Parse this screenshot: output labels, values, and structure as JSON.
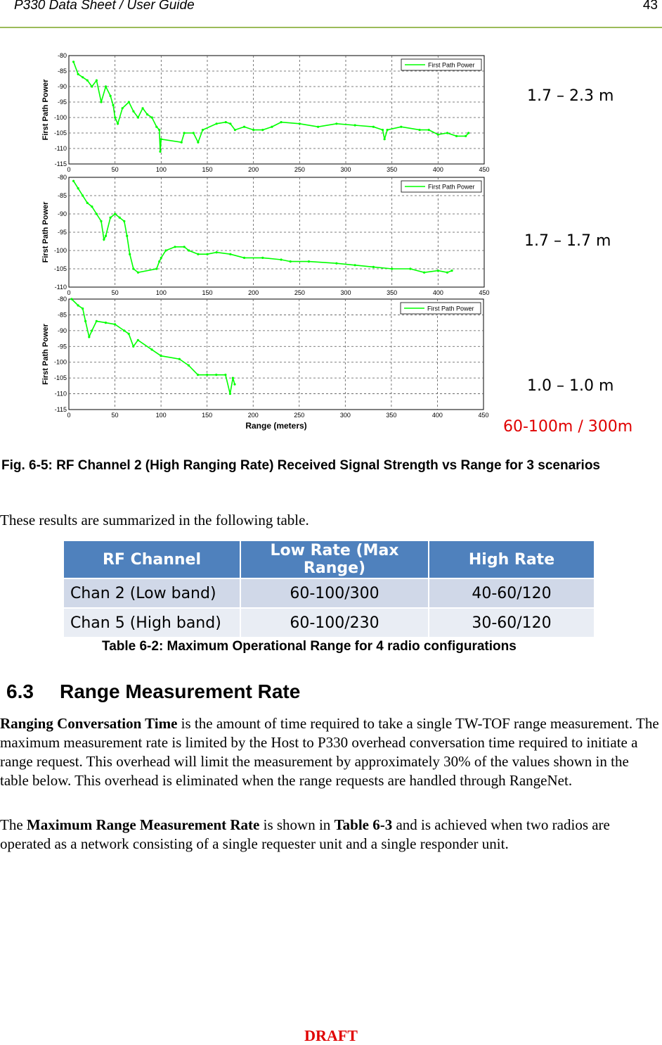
{
  "header": {
    "title": "P330 Data Sheet / User Guide",
    "page_number": "43"
  },
  "figure": {
    "caption": "Fig. 6-5: RF Channel 2 (High Ranging Rate) Received Signal Strength vs Range for 3 scenarios",
    "annotations": [
      "1.7 – 2.3 m",
      "1.7 – 1.7 m",
      "1.0 – 1.0 m"
    ],
    "range_note": "60-100m / 300m",
    "range_note_color": "#e00000",
    "series_color": "#00ff00"
  },
  "chart_data": [
    {
      "type": "line",
      "ylabel": "First Path Power",
      "xlabel": "",
      "xlim": [
        0,
        450
      ],
      "ylim": [
        -115,
        -80
      ],
      "xticks": [
        "0",
        "50",
        "100",
        "150",
        "200",
        "250",
        "300",
        "350",
        "400",
        "450"
      ],
      "yticks": [
        "-80",
        "-85",
        "-90",
        "-95",
        "-100",
        "-105",
        "-110",
        "-115"
      ],
      "grid": true,
      "legend": "top-right",
      "series": [
        {
          "name": "First Path Power",
          "points": [
            [
              5,
              -82
            ],
            [
              10,
              -86
            ],
            [
              15,
              -87
            ],
            [
              20,
              -88
            ],
            [
              25,
              -90
            ],
            [
              30,
              -88
            ],
            [
              35,
              -95
            ],
            [
              40,
              -90
            ],
            [
              45,
              -93
            ],
            [
              48,
              -96
            ],
            [
              50,
              -100
            ],
            [
              53,
              -102
            ],
            [
              58,
              -97
            ],
            [
              65,
              -95
            ],
            [
              70,
              -98
            ],
            [
              75,
              -100
            ],
            [
              80,
              -97
            ],
            [
              85,
              -99
            ],
            [
              90,
              -100
            ],
            [
              95,
              -103
            ],
            [
              98,
              -104
            ],
            [
              99,
              -111
            ],
            [
              100,
              -107
            ],
            [
              122,
              -108
            ],
            [
              125,
              -105
            ],
            [
              135,
              -105
            ],
            [
              140,
              -108
            ],
            [
              145,
              -104
            ],
            [
              160,
              -102
            ],
            [
              170,
              -101.5
            ],
            [
              175,
              -102
            ],
            [
              180,
              -104
            ],
            [
              190,
              -103
            ],
            [
              200,
              -104
            ],
            [
              210,
              -104
            ],
            [
              220,
              -103
            ],
            [
              230,
              -101.5
            ],
            [
              250,
              -102
            ],
            [
              270,
              -103
            ],
            [
              290,
              -102
            ],
            [
              310,
              -102.5
            ],
            [
              330,
              -103
            ],
            [
              340,
              -104
            ],
            [
              342,
              -107
            ],
            [
              345,
              -104
            ],
            [
              360,
              -103
            ],
            [
              380,
              -104
            ],
            [
              390,
              -104
            ],
            [
              400,
              -105.5
            ],
            [
              410,
              -105
            ],
            [
              420,
              -106
            ],
            [
              430,
              -106
            ],
            [
              433,
              -105
            ]
          ]
        }
      ]
    },
    {
      "type": "line",
      "ylabel": "First Path Power",
      "xlabel": "",
      "xlim": [
        0,
        450
      ],
      "ylim": [
        -110,
        -80
      ],
      "xticks": [
        "0",
        "50",
        "100",
        "150",
        "200",
        "250",
        "300",
        "350",
        "400",
        "450"
      ],
      "yticks": [
        "-80",
        "-85",
        "-90",
        "-95",
        "-100",
        "-105",
        "-110"
      ],
      "grid": true,
      "legend": "top-right",
      "series": [
        {
          "name": "First Path Power",
          "points": [
            [
              5,
              -81
            ],
            [
              10,
              -83
            ],
            [
              15,
              -85
            ],
            [
              20,
              -87
            ],
            [
              25,
              -88
            ],
            [
              30,
              -90
            ],
            [
              35,
              -92
            ],
            [
              38,
              -97
            ],
            [
              40,
              -96
            ],
            [
              45,
              -91
            ],
            [
              50,
              -90
            ],
            [
              55,
              -91
            ],
            [
              60,
              -92
            ],
            [
              63,
              -96
            ],
            [
              66,
              -101
            ],
            [
              70,
              -105
            ],
            [
              75,
              -106
            ],
            [
              95,
              -105
            ],
            [
              98,
              -103
            ],
            [
              100,
              -102
            ],
            [
              105,
              -100
            ],
            [
              115,
              -99
            ],
            [
              125,
              -99
            ],
            [
              130,
              -100
            ],
            [
              140,
              -101
            ],
            [
              150,
              -101
            ],
            [
              160,
              -100.5
            ],
            [
              175,
              -101
            ],
            [
              190,
              -102
            ],
            [
              210,
              -102
            ],
            [
              230,
              -102.5
            ],
            [
              240,
              -103
            ],
            [
              260,
              -103
            ],
            [
              290,
              -103.5
            ],
            [
              310,
              -104
            ],
            [
              330,
              -104.5
            ],
            [
              350,
              -105
            ],
            [
              370,
              -105
            ],
            [
              385,
              -106
            ],
            [
              400,
              -105.5
            ],
            [
              410,
              -106
            ],
            [
              415,
              -105.5
            ]
          ]
        }
      ]
    },
    {
      "type": "line",
      "ylabel": "First Path Power",
      "xlabel": "Range (meters)",
      "xlim": [
        0,
        450
      ],
      "ylim": [
        -115,
        -80
      ],
      "xticks": [
        "0",
        "50",
        "100",
        "150",
        "200",
        "250",
        "300",
        "350",
        "400",
        "450"
      ],
      "yticks": [
        "-80",
        "-85",
        "-90",
        "-95",
        "-100",
        "-105",
        "-110",
        "-115"
      ],
      "grid": true,
      "legend": "top-right",
      "series": [
        {
          "name": "First Path Power",
          "points": [
            [
              3,
              -80
            ],
            [
              10,
              -82
            ],
            [
              15,
              -83
            ],
            [
              18,
              -87
            ],
            [
              22,
              -92
            ],
            [
              25,
              -90
            ],
            [
              30,
              -87
            ],
            [
              40,
              -87.5
            ],
            [
              50,
              -88
            ],
            [
              60,
              -90
            ],
            [
              65,
              -91
            ],
            [
              70,
              -95
            ],
            [
              75,
              -93
            ],
            [
              90,
              -96
            ],
            [
              100,
              -98
            ],
            [
              120,
              -99
            ],
            [
              130,
              -101
            ],
            [
              140,
              -104
            ],
            [
              150,
              -104
            ],
            [
              160,
              -104
            ],
            [
              170,
              -104
            ],
            [
              175,
              -110
            ],
            [
              178,
              -105
            ],
            [
              180,
              -107
            ]
          ]
        }
      ]
    }
  ],
  "intro": "These results are summarized in the following table.",
  "table": {
    "headers": [
      "RF Channel",
      "Low Rate (Max Range)",
      "High Rate"
    ],
    "rows": [
      [
        "Chan 2 (Low band)",
        "60-100/300",
        "40-60/120"
      ],
      [
        "Chan 5 (High band)",
        "60-100/230",
        "30-60/120"
      ]
    ],
    "caption": "Table 6-2: Maximum Operational Range for 4 radio configurations",
    "header_color": "#4f81bd"
  },
  "section": {
    "number": "6.3",
    "title": "Range Measurement Rate"
  },
  "p1": {
    "bold": "Ranging Conversation Time",
    "rest": " is the amount of time required to take a single TW-TOF range measurement.  The maximum measurement rate is limited by the Host to P330 overhead conversation time required to initiate a range request.  This overhead will limit the measurement by approximately 30% of the values shown in the table below.  This overhead is eliminated when the range requests are handled through RangeNet."
  },
  "p2": {
    "t1": "The ",
    "b1": "Maximum Range Measurement Rate",
    "t2": " is shown in ",
    "b2": "Table 6-3",
    "t3": " and is achieved when two radios are operated as a network consisting of a single requester unit and a single responder unit."
  },
  "footer": {
    "draft": "DRAFT"
  }
}
